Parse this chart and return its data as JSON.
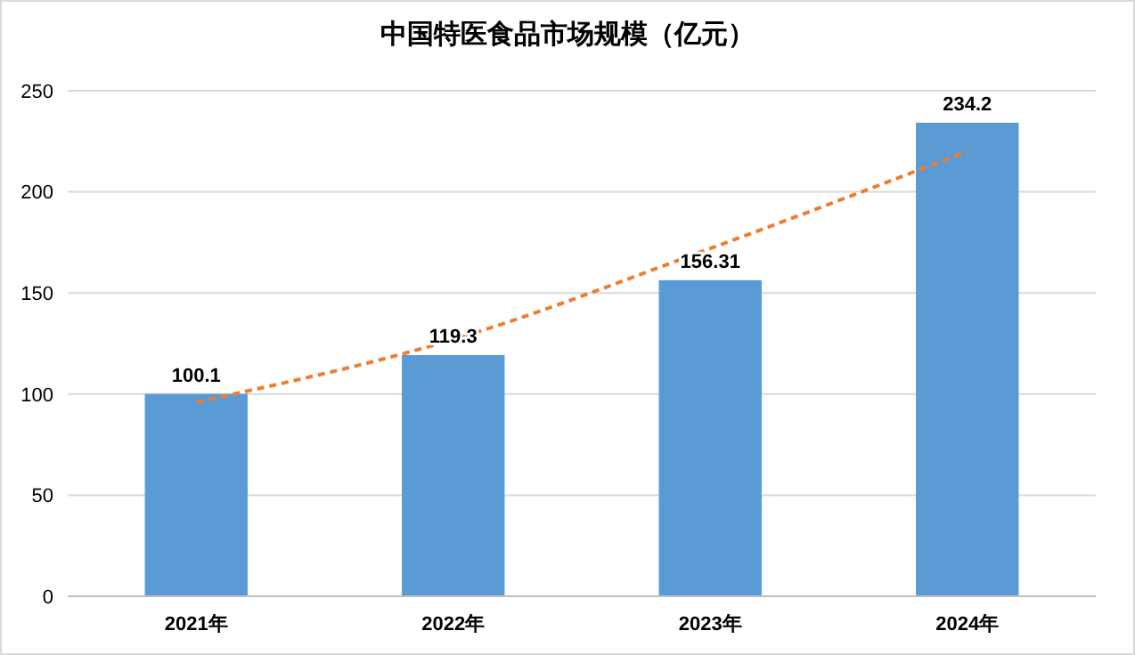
{
  "chart_data": {
    "type": "bar",
    "title": "中国特医食品市场规模（亿元）",
    "categories": [
      "2021年",
      "2022年",
      "2023年",
      "2024年"
    ],
    "series": [
      {
        "color": "#5b9bd5",
        "values": [
          100.1,
          119.3,
          156.31,
          234.2
        ],
        "value_labels": [
          "100.1",
          "119.3",
          "156.31",
          "234.2"
        ]
      },
      {
        "type": "line",
        "color": "#ed7d31",
        "values": [
          96,
          127,
          172,
          220
        ],
        "line_style": "dashed",
        "marker": "none"
      }
    ],
    "ylim": [
      0,
      250
    ],
    "yticks": [
      0,
      50,
      100,
      150,
      200,
      250
    ],
    "grid": "y"
  }
}
